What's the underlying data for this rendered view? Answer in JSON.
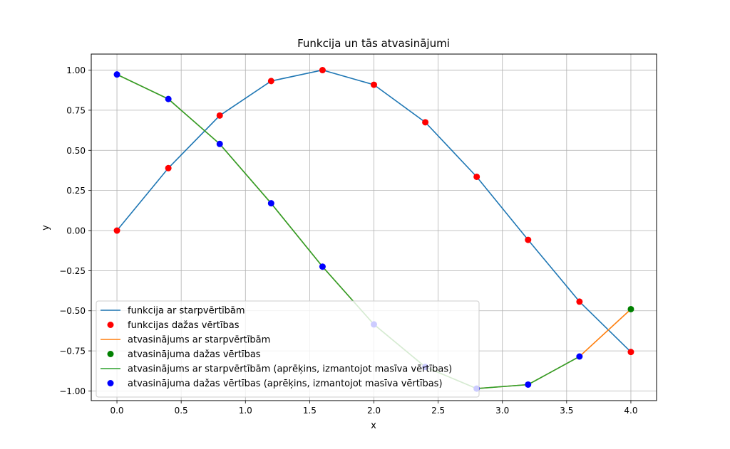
{
  "chart_data": {
    "type": "line",
    "title": "Funkcija un tās atvasinājumi",
    "xlabel": "x",
    "ylabel": "y",
    "xlim": [
      -0.2,
      4.2
    ],
    "ylim": [
      -1.06,
      1.1
    ],
    "grid": true,
    "legend_position": "lower-left",
    "x_ticks": [
      0.0,
      0.5,
      1.0,
      1.5,
      2.0,
      2.5,
      3.0,
      3.5,
      4.0
    ],
    "x_tick_labels": [
      "0.0",
      "0.5",
      "1.0",
      "1.5",
      "2.0",
      "2.5",
      "3.0",
      "3.5",
      "4.0"
    ],
    "y_ticks": [
      1.0,
      0.75,
      0.5,
      0.25,
      0.0,
      -0.25,
      -0.5,
      -0.75,
      -1.0
    ],
    "y_tick_labels": [
      "1.00",
      "0.75",
      "0.50",
      "0.25",
      "0.00",
      "−0.25",
      "−0.50",
      "−0.75",
      "−1.00"
    ],
    "series": [
      {
        "name": "funkcija ar starpvērtībām",
        "kind": "line",
        "color": "#1f77b4",
        "x": [
          0,
          0.4,
          0.8,
          1.2,
          1.6,
          2.0,
          2.4,
          2.8,
          3.2,
          3.6,
          4.0
        ],
        "y": [
          0.0,
          0.389,
          0.717,
          0.932,
          1.0,
          0.909,
          0.675,
          0.335,
          -0.058,
          -0.443,
          -0.757
        ]
      },
      {
        "name": "funkcijas dažas vērtības",
        "kind": "scatter",
        "color": "#ff0000",
        "x": [
          0,
          0.4,
          0.8,
          1.2,
          1.6,
          2.0,
          2.4,
          2.8,
          3.2,
          3.6,
          4.0
        ],
        "y": [
          0.0,
          0.389,
          0.717,
          0.932,
          1.0,
          0.909,
          0.675,
          0.335,
          -0.058,
          -0.443,
          -0.757
        ]
      },
      {
        "name": "atvasinājums ar starpvērtībām",
        "kind": "line",
        "color": "#ff7f0e",
        "x": [
          0,
          0.4,
          0.8,
          1.2,
          1.6,
          2.0,
          2.4,
          2.8,
          3.2,
          3.6,
          4.0
        ],
        "y": [
          0.973,
          0.82,
          0.54,
          0.17,
          -0.225,
          -0.585,
          -0.85,
          -0.985,
          -0.96,
          -0.785,
          -0.49
        ]
      },
      {
        "name": "atvasinājuma dažas vērtības",
        "kind": "scatter",
        "color": "#008000",
        "x": [
          4.0
        ],
        "y": [
          -0.49
        ]
      },
      {
        "name": "atvasinājums ar starpvērtībām (aprēķins, izmantojot masīva vērtības)",
        "kind": "line",
        "color": "#2ca02c",
        "x": [
          0,
          0.4,
          0.8,
          1.2,
          1.6,
          2.0,
          2.4,
          2.8,
          3.2,
          3.6
        ],
        "y": [
          0.973,
          0.82,
          0.54,
          0.17,
          -0.225,
          -0.585,
          -0.85,
          -0.985,
          -0.96,
          -0.785
        ]
      },
      {
        "name": "atvasinājuma dažas vērtības (aprēķins, izmantojot masīva vērtības)",
        "kind": "scatter",
        "color": "#0000ff",
        "x": [
          0,
          0.4,
          0.8,
          1.2,
          1.6,
          2.0,
          2.4,
          2.8,
          3.2,
          3.6
        ],
        "y": [
          0.973,
          0.82,
          0.54,
          0.17,
          -0.225,
          -0.585,
          -0.85,
          -0.985,
          -0.96,
          -0.785
        ]
      }
    ]
  }
}
